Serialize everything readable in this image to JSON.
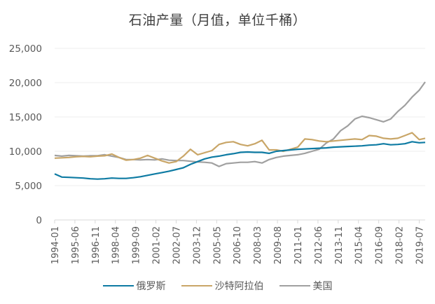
{
  "chart_data": {
    "type": "line",
    "title": "石油产量（月值，单位千桶）",
    "xlabel": "",
    "ylabel": "",
    "ylim": [
      0,
      25000
    ],
    "yticks": [
      0,
      5000,
      10000,
      15000,
      20000,
      25000
    ],
    "ytick_labels": [
      "0",
      "5,000",
      "10,000",
      "15,000",
      "20,000",
      "25,000"
    ],
    "xtick_labels": [
      "1994-01",
      "1995-06",
      "1996-11",
      "1998-04",
      "1999-09",
      "2001-02",
      "2002-07",
      "2003-12",
      "2005-05",
      "2006-10",
      "2008-03",
      "2009-08",
      "2011-01",
      "2012-06",
      "2013-11",
      "2015-04",
      "2016-09",
      "2018-02",
      "2019-07"
    ],
    "x_range": [
      "1994-01",
      "2019-12"
    ],
    "grid": "horizontal",
    "legend_position": "bottom",
    "x": [
      "1994-01",
      "1994-07",
      "1995-01",
      "1995-07",
      "1996-01",
      "1996-07",
      "1997-01",
      "1997-07",
      "1998-01",
      "1998-07",
      "1999-01",
      "1999-07",
      "2000-01",
      "2000-07",
      "2001-01",
      "2001-07",
      "2002-01",
      "2002-07",
      "2003-01",
      "2003-07",
      "2004-01",
      "2004-07",
      "2005-01",
      "2005-07",
      "2006-01",
      "2006-07",
      "2007-01",
      "2007-07",
      "2008-01",
      "2008-07",
      "2009-01",
      "2009-07",
      "2010-01",
      "2010-07",
      "2011-01",
      "2011-07",
      "2012-01",
      "2012-07",
      "2013-01",
      "2013-07",
      "2014-01",
      "2014-07",
      "2015-01",
      "2015-07",
      "2016-01",
      "2016-07",
      "2017-01",
      "2017-07",
      "2018-01",
      "2018-07",
      "2019-01",
      "2019-07",
      "2019-12"
    ],
    "series": [
      {
        "name": "俄罗斯",
        "color": "#0e7ba3",
        "values": [
          6700,
          6250,
          6200,
          6150,
          6100,
          6000,
          5950,
          6000,
          6100,
          6050,
          6050,
          6150,
          6300,
          6500,
          6700,
          6900,
          7100,
          7350,
          7600,
          8100,
          8500,
          8900,
          9150,
          9300,
          9500,
          9650,
          9850,
          9900,
          9850,
          9850,
          9700,
          10000,
          10100,
          10200,
          10300,
          10350,
          10400,
          10450,
          10500,
          10600,
          10650,
          10700,
          10750,
          10800,
          10900,
          10950,
          11100,
          10950,
          11000,
          11100,
          11400,
          11250,
          11300
        ]
      },
      {
        "name": "沙特阿拉伯",
        "color": "#c9a668",
        "values": [
          9000,
          9050,
          9100,
          9200,
          9250,
          9200,
          9300,
          9350,
          9600,
          9100,
          8700,
          8800,
          9000,
          9400,
          9000,
          8600,
          8300,
          8500,
          9300,
          10300,
          9500,
          9800,
          10100,
          11000,
          11300,
          11400,
          11000,
          10800,
          11100,
          11600,
          10200,
          10200,
          10000,
          10300,
          10600,
          11800,
          11700,
          11500,
          11400,
          11500,
          11600,
          11700,
          11800,
          11700,
          12300,
          12200,
          11900,
          11800,
          11900,
          12300,
          12700,
          11700,
          11900
        ]
      },
      {
        "name": "美国",
        "color": "#a0a0a0",
        "values": [
          9400,
          9300,
          9400,
          9350,
          9300,
          9350,
          9350,
          9500,
          9300,
          9100,
          8800,
          8800,
          8750,
          8800,
          8750,
          8900,
          8700,
          8650,
          8650,
          8550,
          8450,
          8400,
          8300,
          7800,
          8200,
          8300,
          8400,
          8400,
          8500,
          8300,
          8800,
          9100,
          9300,
          9400,
          9500,
          9700,
          10000,
          10300,
          11200,
          11800,
          13000,
          13700,
          14700,
          15100,
          14900,
          14600,
          14300,
          14700,
          15800,
          16700,
          17900,
          18900,
          20100
        ]
      }
    ]
  }
}
